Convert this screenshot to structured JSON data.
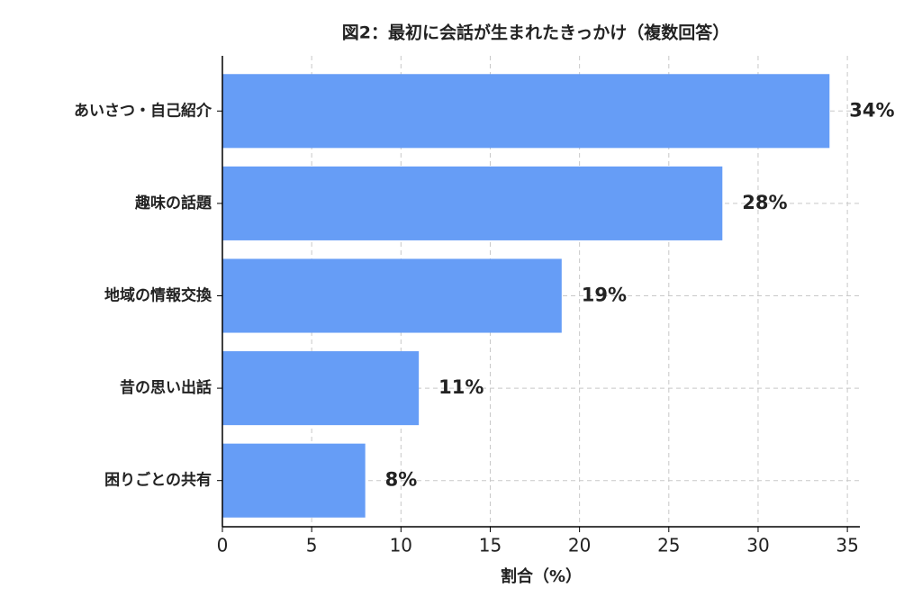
{
  "chart_data": {
    "type": "barh",
    "title": "図2：最初に会話が生まれたきっかけ（複数回答）",
    "xlabel": "割合（%）",
    "categories": [
      "あいさつ・自己紹介",
      "趣味の話題",
      "地域の情報交換",
      "昔の思い出話",
      "困りごとの共有"
    ],
    "values": [
      34,
      28,
      19,
      11,
      8
    ],
    "value_labels": [
      "34%",
      "28%",
      "19%",
      "11%",
      "8%"
    ],
    "color": "#669df6",
    "xlim": [
      0,
      35.7
    ],
    "xticks": [
      0,
      5,
      10,
      15,
      20,
      25,
      30,
      35
    ],
    "grid": true
  }
}
